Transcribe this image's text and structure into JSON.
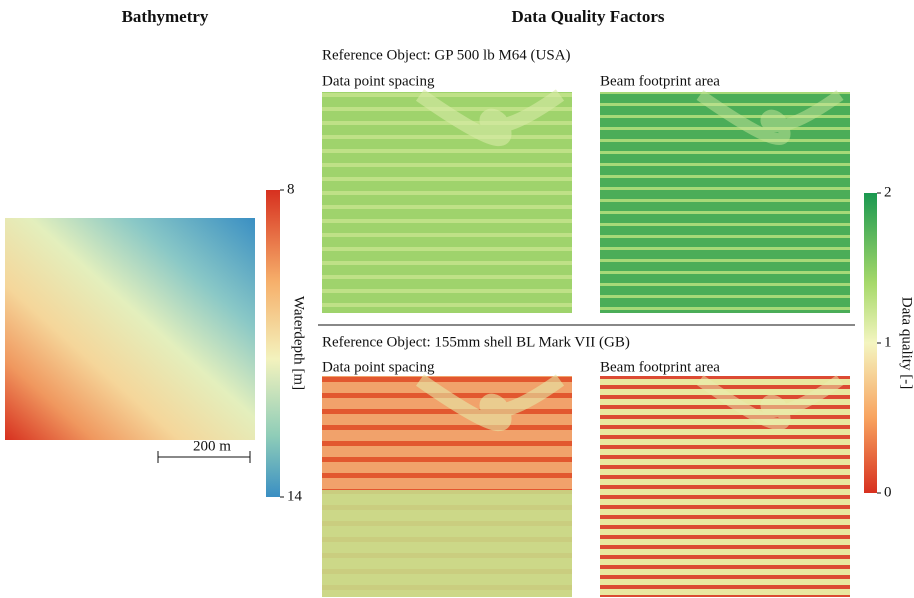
{
  "bathymetry": {
    "title": "Bathymetry",
    "scale_bar": "200 m",
    "colorbar": {
      "label": "Waterdepth [m]",
      "lim": [
        8,
        14
      ],
      "ticks": [
        8,
        14
      ]
    }
  },
  "quality": {
    "title": "Data Quality Factors",
    "groups": [
      {
        "reference": "Reference Object: GP 500 lb M64 (USA)",
        "panels": [
          "Data point spacing",
          "Beam footprint area"
        ]
      },
      {
        "reference": "Reference Object: 155mm shell BL Mark VII (GB)",
        "panels": [
          "Data point spacing",
          "Beam footprint area"
        ]
      }
    ],
    "colorbar": {
      "label": "Data quality [-]",
      "lim": [
        0,
        2
      ],
      "ticks": [
        2,
        1,
        0
      ]
    }
  }
}
